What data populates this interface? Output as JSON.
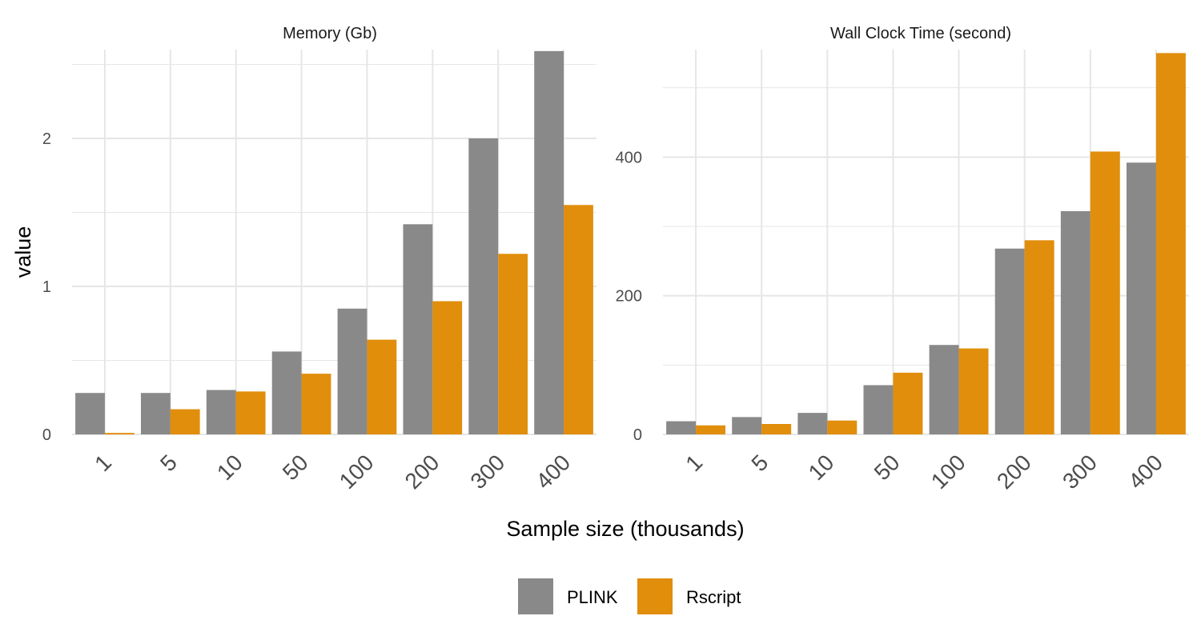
{
  "chart_data": [
    {
      "type": "bar",
      "title": "Memory (Gb)",
      "ylabel": "value",
      "xlabel": "Sample size (thousands)",
      "categories": [
        "1",
        "5",
        "10",
        "50",
        "100",
        "200",
        "300",
        "400"
      ],
      "series": [
        {
          "name": "PLINK",
          "values": [
            0.28,
            0.28,
            0.3,
            0.56,
            0.85,
            1.42,
            2.0,
            2.59
          ]
        },
        {
          "name": "Rscript",
          "values": [
            0.01,
            0.17,
            0.29,
            0.41,
            0.64,
            0.9,
            1.22,
            1.55
          ]
        }
      ],
      "ylim": [
        0,
        2.6
      ],
      "yticks": [
        0,
        1,
        2
      ],
      "grid": true
    },
    {
      "type": "bar",
      "title": "Wall Clock Time (second)",
      "ylabel": "value",
      "xlabel": "Sample size (thousands)",
      "categories": [
        "1",
        "5",
        "10",
        "50",
        "100",
        "200",
        "300",
        "400"
      ],
      "series": [
        {
          "name": "PLINK",
          "values": [
            19,
            25,
            31,
            71,
            129,
            268,
            322,
            392
          ]
        },
        {
          "name": "Rscript",
          "values": [
            13,
            15,
            20,
            89,
            124,
            280,
            408,
            550
          ]
        }
      ],
      "ylim": [
        0,
        555
      ],
      "yticks": [
        0,
        200,
        400
      ],
      "grid": true
    }
  ],
  "colors": {
    "PLINK": "#898989",
    "Rscript": "#e08e0b",
    "grid": "#e6e6e6",
    "axis_text": "#4d4d4d"
  },
  "legend": {
    "position": "bottom",
    "items": [
      "PLINK",
      "Rscript"
    ]
  },
  "labels": {
    "shared_xlabel": "Sample size (thousands)",
    "shared_ylabel": "value"
  }
}
